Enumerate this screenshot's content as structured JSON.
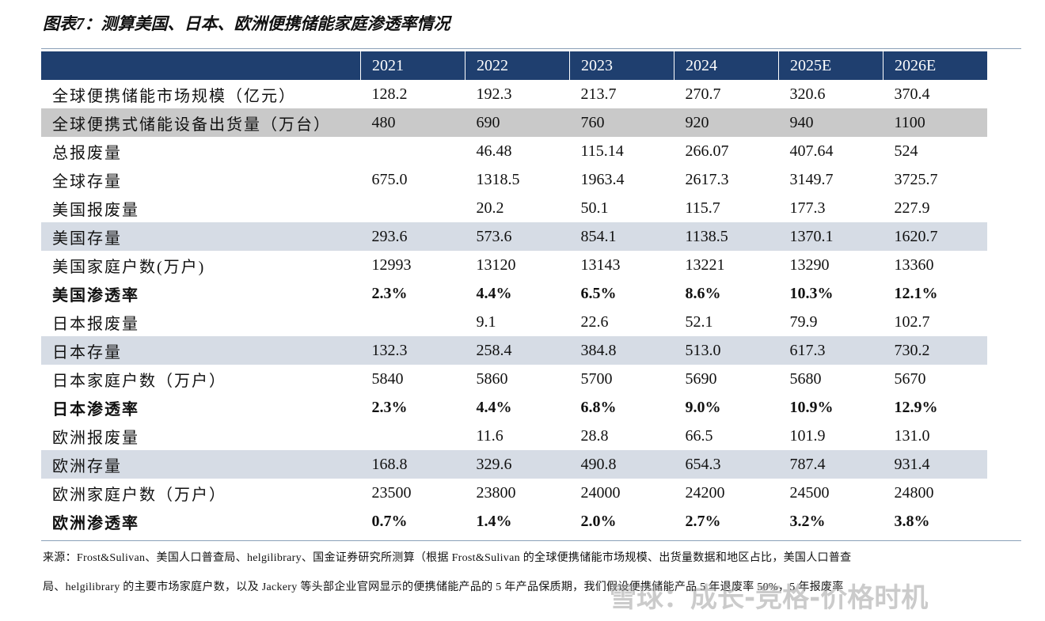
{
  "title": "图表7：测算美国、日本、欧洲便携储能家庭渗透率情况",
  "table": {
    "header": [
      "2021",
      "2022",
      "2023",
      "2024",
      "2025E",
      "2026E"
    ],
    "rows": [
      [
        "全球便携储能市场规模（亿元）",
        "128.2",
        "192.3",
        "213.7",
        "270.7",
        "320.6",
        "370.4"
      ],
      [
        "全球便携式储能设备出货量（万台）",
        "480",
        "690",
        "760",
        "920",
        "940",
        "1100"
      ],
      [
        "总报废量",
        null,
        "46.48",
        "115.14",
        "266.07",
        "407.64",
        "524"
      ],
      [
        "全球存量",
        "675.0",
        "1318.5",
        "1963.4",
        "2617.3",
        "3149.7",
        "3725.7"
      ],
      [
        "美国报废量",
        null,
        "20.2",
        "50.1",
        "115.7",
        "177.3",
        "227.9"
      ],
      [
        "美国存量",
        "293.6",
        "573.6",
        "854.1",
        "1138.5",
        "1370.1",
        "1620.7"
      ],
      [
        "美国家庭户数(万户)",
        "12993",
        "13120",
        "13143",
        "13221",
        "13290",
        "13360"
      ],
      [
        "美国渗透率",
        "2.3%",
        "4.4%",
        "6.5%",
        "8.6%",
        "10.3%",
        "12.1%"
      ],
      [
        "日本报废量",
        null,
        "9.1",
        "22.6",
        "52.1",
        "79.9",
        "102.7"
      ],
      [
        "日本存量",
        "132.3",
        "258.4",
        "384.8",
        "513.0",
        "617.3",
        "730.2"
      ],
      [
        "日本家庭户数（万户）",
        "5840",
        "5860",
        "5700",
        "5690",
        "5680",
        "5670"
      ],
      [
        "日本渗透率",
        "2.3%",
        "4.4%",
        "6.8%",
        "9.0%",
        "10.9%",
        "12.9%"
      ],
      [
        "欧洲报废量",
        null,
        "11.6",
        "28.8",
        "66.5",
        "101.9",
        "131.0"
      ],
      [
        "欧洲存量",
        "168.8",
        "329.6",
        "490.8",
        "654.3",
        "787.4",
        "931.4"
      ],
      [
        "欧洲家庭户数（万户）",
        "23500",
        "23800",
        "24000",
        "24200",
        "24500",
        "24800"
      ],
      [
        "欧洲渗透率",
        "0.7%",
        "1.4%",
        "2.0%",
        "2.7%",
        "3.2%",
        "3.8%"
      ]
    ]
  },
  "source": [
    "来源：Frost&Sulivan、美国人口普查局、helgilibrary、国金证券研究所测算（根据 Frost&Sulivan 的全球便携储能市场规模、出货量数据和地区占比，美国人口普查",
    "局、helgilibrary 的主要市场家庭户数，以及 Jackery 等头部企业官网显示的便携储能产品的 5 年产品保质期，我们假设便携储能产品 5 年退废率 50%，5 年报废率"
  ],
  "watermark": "雪球：成长-竞格-价格时机"
}
